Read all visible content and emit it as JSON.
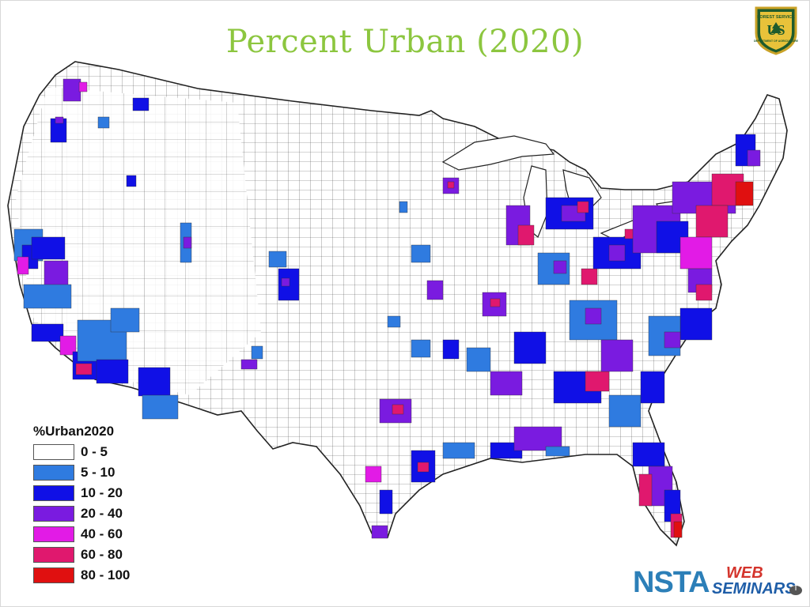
{
  "slide": {
    "title": "Percent Urban (2020)"
  },
  "legend": {
    "title": "%Urban2020",
    "classes": [
      {
        "label": "0 - 5",
        "color": "#ffffff"
      },
      {
        "label": "5 - 10",
        "color": "#2f7be0"
      },
      {
        "label": "10 - 20",
        "color": "#1010e6"
      },
      {
        "label": "20 - 40",
        "color": "#7a1be0"
      },
      {
        "label": "40 - 60",
        "color": "#e21be6"
      },
      {
        "label": "60 - 80",
        "color": "#e0186e"
      },
      {
        "label": "80 - 100",
        "color": "#e01010"
      }
    ]
  },
  "logos": {
    "usfs": {
      "icon": "forest-service-shield-icon",
      "text_top": "FOREST SERVICE",
      "text_mid": "US",
      "text_bottom": "DEPARTMENT OF AGRICULTURE"
    },
    "nsta": {
      "icon": "nsta-web-seminars-logo",
      "wordmark": "NSTA",
      "line1": "WEB",
      "line2": "SEMINARS"
    }
  }
}
